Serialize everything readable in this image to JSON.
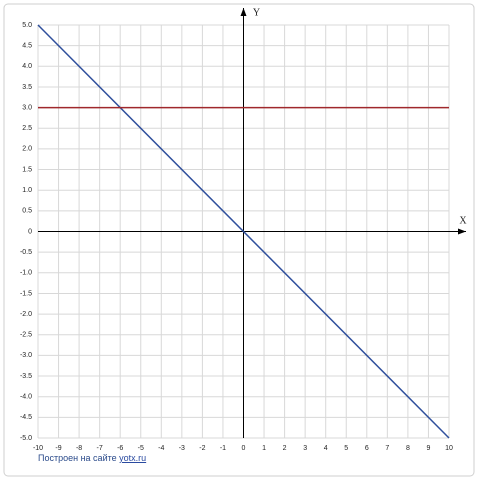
{
  "chart_data": {
    "type": "line",
    "x_label": "X",
    "y_label": "Y",
    "x": [
      -10,
      10
    ],
    "series": [
      {
        "color": "#2f4f9c",
        "values": [
          5,
          -5
        ]
      },
      {
        "color": "#a0282c",
        "values": [
          3,
          3
        ]
      }
    ],
    "xlim": [
      -10,
      10
    ],
    "xticks": [
      -10,
      -9,
      -8,
      -7,
      -6,
      -5,
      -4,
      -3,
      -2,
      -1,
      0,
      1,
      2,
      3,
      4,
      5,
      6,
      7,
      8,
      9,
      10
    ],
    "ylim": [
      -5,
      5
    ],
    "yticks": [
      {
        "value": 5,
        "label": "5.0"
      },
      4.5,
      {
        "value": 4,
        "label": "4.0"
      },
      3.5,
      {
        "value": 3,
        "label": "3.0"
      },
      2.5,
      {
        "value": 2,
        "label": "2.0"
      },
      1.5,
      {
        "value": 1,
        "label": "1.0"
      },
      0.5,
      0,
      -0.5,
      {
        "value": -1,
        "label": "-1.0"
      },
      -1.5,
      {
        "value": -2,
        "label": "-2.0"
      },
      -2.5,
      {
        "value": -3,
        "label": "-3.0"
      },
      -3.5,
      {
        "value": -4,
        "label": "-4.0"
      },
      -4.5,
      {
        "value": -5,
        "label": "-5.0"
      }
    ],
    "grid": true,
    "footer": {
      "text": "Построен на сайте",
      "link": "yotx.ru"
    }
  }
}
